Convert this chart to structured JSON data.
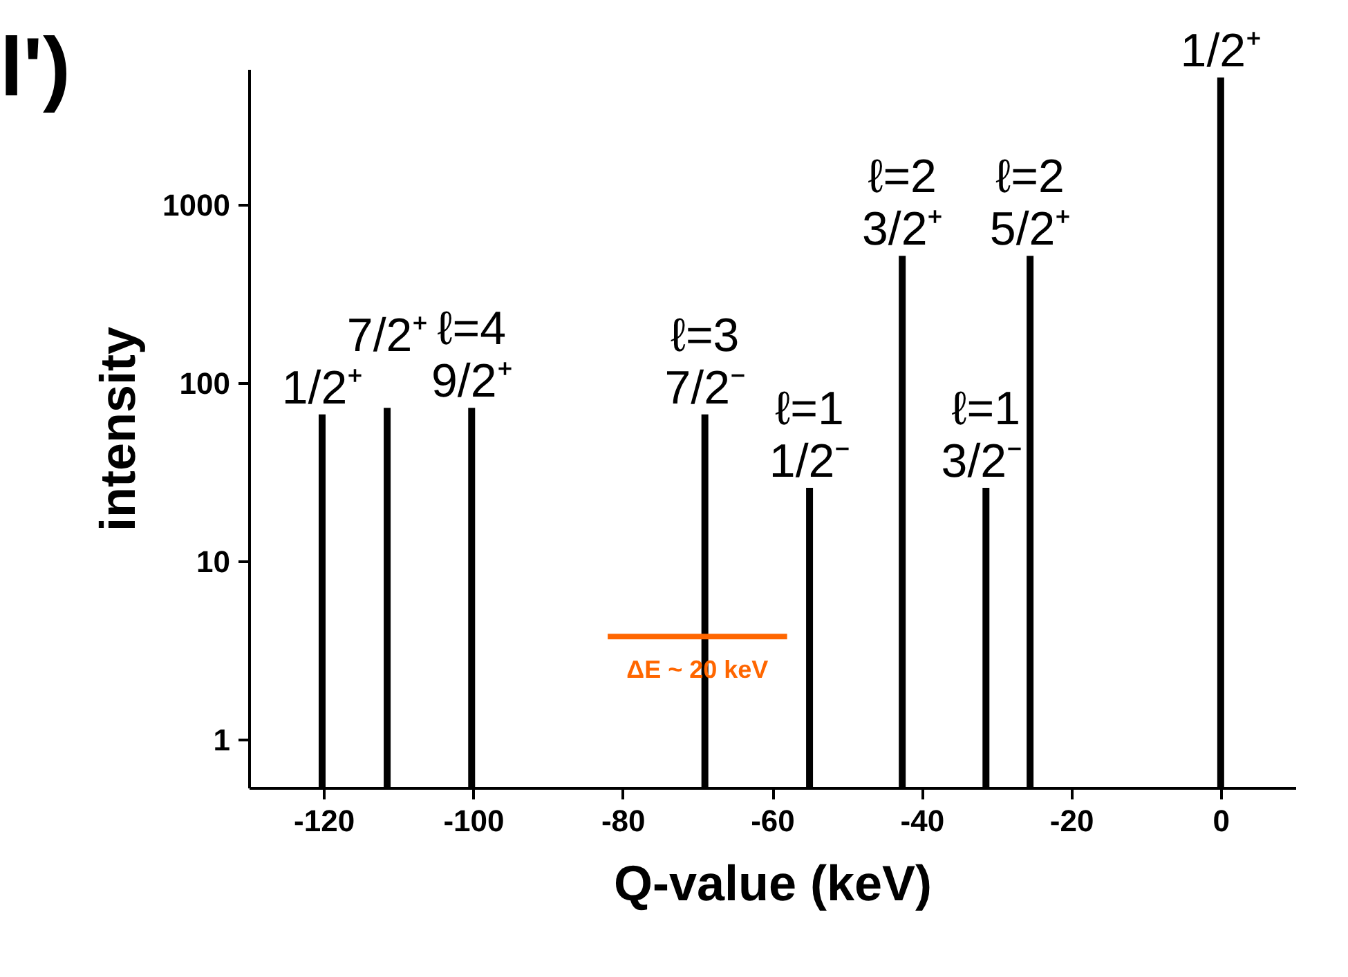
{
  "chart_data": {
    "type": "bar",
    "xlabel": "Q-value (keV)",
    "ylabel": "intensity",
    "log": "y",
    "xlim": [
      -130,
      10
    ],
    "xticks": [
      -120,
      -100,
      -80,
      -60,
      -40,
      -20,
      0
    ],
    "ylim": [
      0.54,
      5800
    ],
    "yticks": [
      1,
      10,
      100,
      1000
    ],
    "grid": false,
    "series": [
      {
        "color": "#000000",
        "x": [
          -120.2,
          -111.5,
          -100.2,
          -69,
          -55,
          -42.6,
          -31.4,
          -25.5,
          0
        ],
        "values": [
          67,
          73,
          73,
          67,
          26,
          520,
          26,
          520,
          5200
        ]
      },
      {
        "type": "line",
        "name": "ΔE ~ 20 keV",
        "color": "#ff6600",
        "x": [
          -82,
          -58
        ],
        "values": [
          3.8,
          3.8
        ]
      }
    ],
    "annotations": [
      "l')",
      {
        "text": "1/2⁺",
        "x": -120.2,
        "y": 67
      },
      {
        "text": "7/2⁺",
        "x": -111.5,
        "y": 73
      },
      {
        "text": "9/2⁺",
        "x": -100.2,
        "y": 73
      },
      {
        "text": "ℓ=4",
        "x": -100.2,
        "y": 73
      },
      {
        "text": "7/2⁻",
        "x": -69,
        "y": 67
      },
      {
        "text": "ℓ=3",
        "x": -69,
        "y": 67
      },
      {
        "text": "1/2⁻",
        "x": -55,
        "y": 26
      },
      {
        "text": "ℓ=1",
        "x": -55,
        "y": 26
      },
      {
        "text": "3/2⁺",
        "x": -42.6,
        "y": 520
      },
      {
        "text": "ℓ=2",
        "x": -42.6,
        "y": 520
      },
      {
        "text": "3/2⁻",
        "x": -31.4,
        "y": 26
      },
      {
        "text": "ℓ=1",
        "x": -31.4,
        "y": 26
      },
      {
        "text": "5/2⁺",
        "x": -25.5,
        "y": 520
      },
      {
        "text": "ℓ=2",
        "x": -25.5,
        "y": 520
      },
      {
        "text": "1/2⁺",
        "x": 0,
        "y": 5200
      }
    ]
  }
}
